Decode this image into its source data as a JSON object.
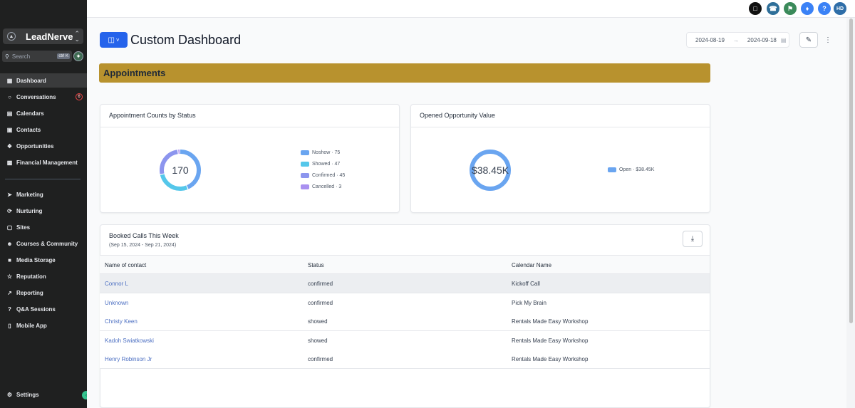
{
  "sidebar": {
    "brand": "LeadNerve",
    "search": {
      "placeholder": "Search",
      "shortcut": "ctrl K"
    },
    "items": [
      {
        "label": "Dashboard",
        "icon": "dashboard-icon",
        "active": true
      },
      {
        "label": "Conversations",
        "icon": "chat-icon",
        "badge": "6"
      },
      {
        "label": "Calendars",
        "icon": "calendar-icon"
      },
      {
        "label": "Contacts",
        "icon": "contacts-icon"
      },
      {
        "label": "Opportunities",
        "icon": "opportunities-icon"
      },
      {
        "label": "Financial Management",
        "icon": "finance-icon"
      },
      {
        "label": "Marketing",
        "icon": "send-icon"
      },
      {
        "label": "Nurturing",
        "icon": "nurturing-icon"
      },
      {
        "label": "Sites",
        "icon": "sites-icon"
      },
      {
        "label": "Courses & Community",
        "icon": "community-icon"
      },
      {
        "label": "Media Storage",
        "icon": "media-icon"
      },
      {
        "label": "Reputation",
        "icon": "star-icon"
      },
      {
        "label": "Reporting",
        "icon": "trend-icon"
      },
      {
        "label": "Q&A Sessions",
        "icon": "help-icon"
      },
      {
        "label": "Mobile App",
        "icon": "phone-icon"
      }
    ],
    "settings": "Settings"
  },
  "topbar": {
    "avatar_initials": "HD",
    "icons": [
      "chat-icon",
      "phone-icon",
      "megaphone-icon",
      "bell-icon",
      "help-icon"
    ]
  },
  "header": {
    "title": "Custom Dashboard",
    "date_start": "2024-08-19",
    "date_end": "2024-09-18"
  },
  "section": {
    "title": "Appointments"
  },
  "status_card": {
    "title": "Appointment Counts by Status",
    "total": "170",
    "legend": [
      {
        "label": "Noshow · 75",
        "color": "#6aa5f0"
      },
      {
        "label": "Showed · 47",
        "color": "#55c7ea"
      },
      {
        "label": "Confirmed · 45",
        "color": "#8c95ee"
      },
      {
        "label": "Cancelled · 3",
        "color": "#a990f0"
      }
    ]
  },
  "opportunity_card": {
    "title": "Opened Opportunity Value",
    "total": "$38.45K",
    "legend": [
      {
        "label": "Open · $38.45K",
        "color": "#6aa5f0"
      }
    ]
  },
  "chart_data": [
    {
      "type": "pie",
      "title": "Appointment Counts by Status",
      "categories": [
        "Noshow",
        "Showed",
        "Confirmed",
        "Cancelled"
      ],
      "values": [
        75,
        47,
        45,
        3
      ],
      "colors": [
        "#6aa5f0",
        "#55c7ea",
        "#8c95ee",
        "#a990f0"
      ],
      "legend": "right"
    },
    {
      "type": "pie",
      "title": "Opened Opportunity Value",
      "categories": [
        "Open"
      ],
      "values": [
        38450
      ],
      "colors": [
        "#6aa5f0"
      ],
      "legend": "right"
    }
  ],
  "booked_calls": {
    "title": "Booked Calls This Week",
    "subtitle": "(Sep 15, 2024 - Sep 21, 2024)",
    "columns": [
      "Name of contact",
      "Status",
      "Calendar Name"
    ],
    "rows": [
      {
        "name": "Connor L",
        "status": "confirmed",
        "calendar": "Kickoff Call"
      },
      {
        "name": "Unknown",
        "status": "confirmed",
        "calendar": "Pick My Brain"
      },
      {
        "name": "Christy Keen",
        "status": "showed",
        "calendar": "Rentals Made Easy Workshop"
      },
      {
        "name": "Kadoh Swiatkowski",
        "status": "showed",
        "calendar": "Rentals Made Easy Workshop"
      },
      {
        "name": "Henry Robinson Jr",
        "status": "confirmed",
        "calendar": "Rentals Made Easy Workshop"
      }
    ]
  }
}
